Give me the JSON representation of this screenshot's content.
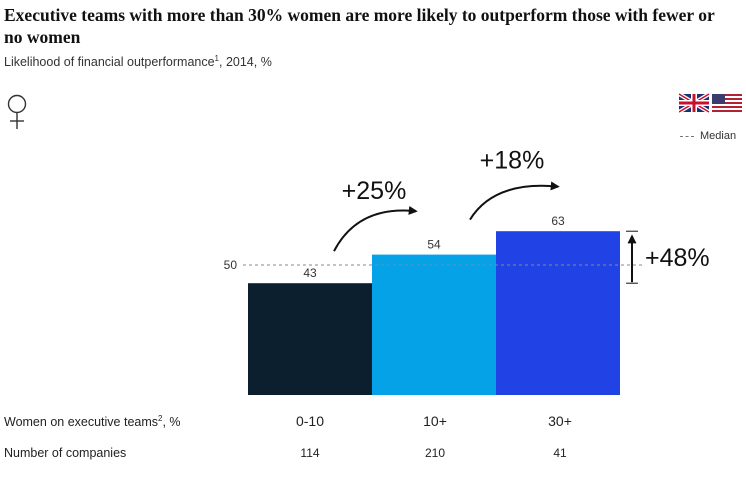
{
  "title": "Executive teams with more than 30% women are more likely to outperform those with fewer or no women",
  "subtitle": {
    "text": "Likelihood of financial outperformance",
    "sup": "1",
    "suffix": ", 2014, %"
  },
  "legend": {
    "median_label": "Median"
  },
  "flags": [
    "uk-flag-icon",
    "us-flag-icon"
  ],
  "rows": {
    "women_label": {
      "text": "Women on executive teams",
      "sup": "2",
      "suffix": ", %"
    },
    "companies_label": "Number of companies",
    "companies": [
      "114",
      "210",
      "41"
    ]
  },
  "colors": {
    "bar1": "#0c1f2e",
    "bar2": "#06a2e8",
    "bar3": "#2143e6",
    "median_line": "#888888",
    "arrow": "#111111"
  },
  "chart_data": {
    "type": "bar",
    "categories": [
      "0-10",
      "10+",
      "30+"
    ],
    "values": [
      43,
      54,
      63
    ],
    "median": 50,
    "median_label": "50",
    "xlabel": "Women on executive teams, %",
    "ylabel": "",
    "grid": false,
    "annotations": [
      {
        "text": "+25%",
        "from": "0-10",
        "to": "10+"
      },
      {
        "text": "+18%",
        "from": "10+",
        "to": "30+"
      },
      {
        "text": "+48%",
        "from": "0-10",
        "to": "30+"
      }
    ]
  }
}
